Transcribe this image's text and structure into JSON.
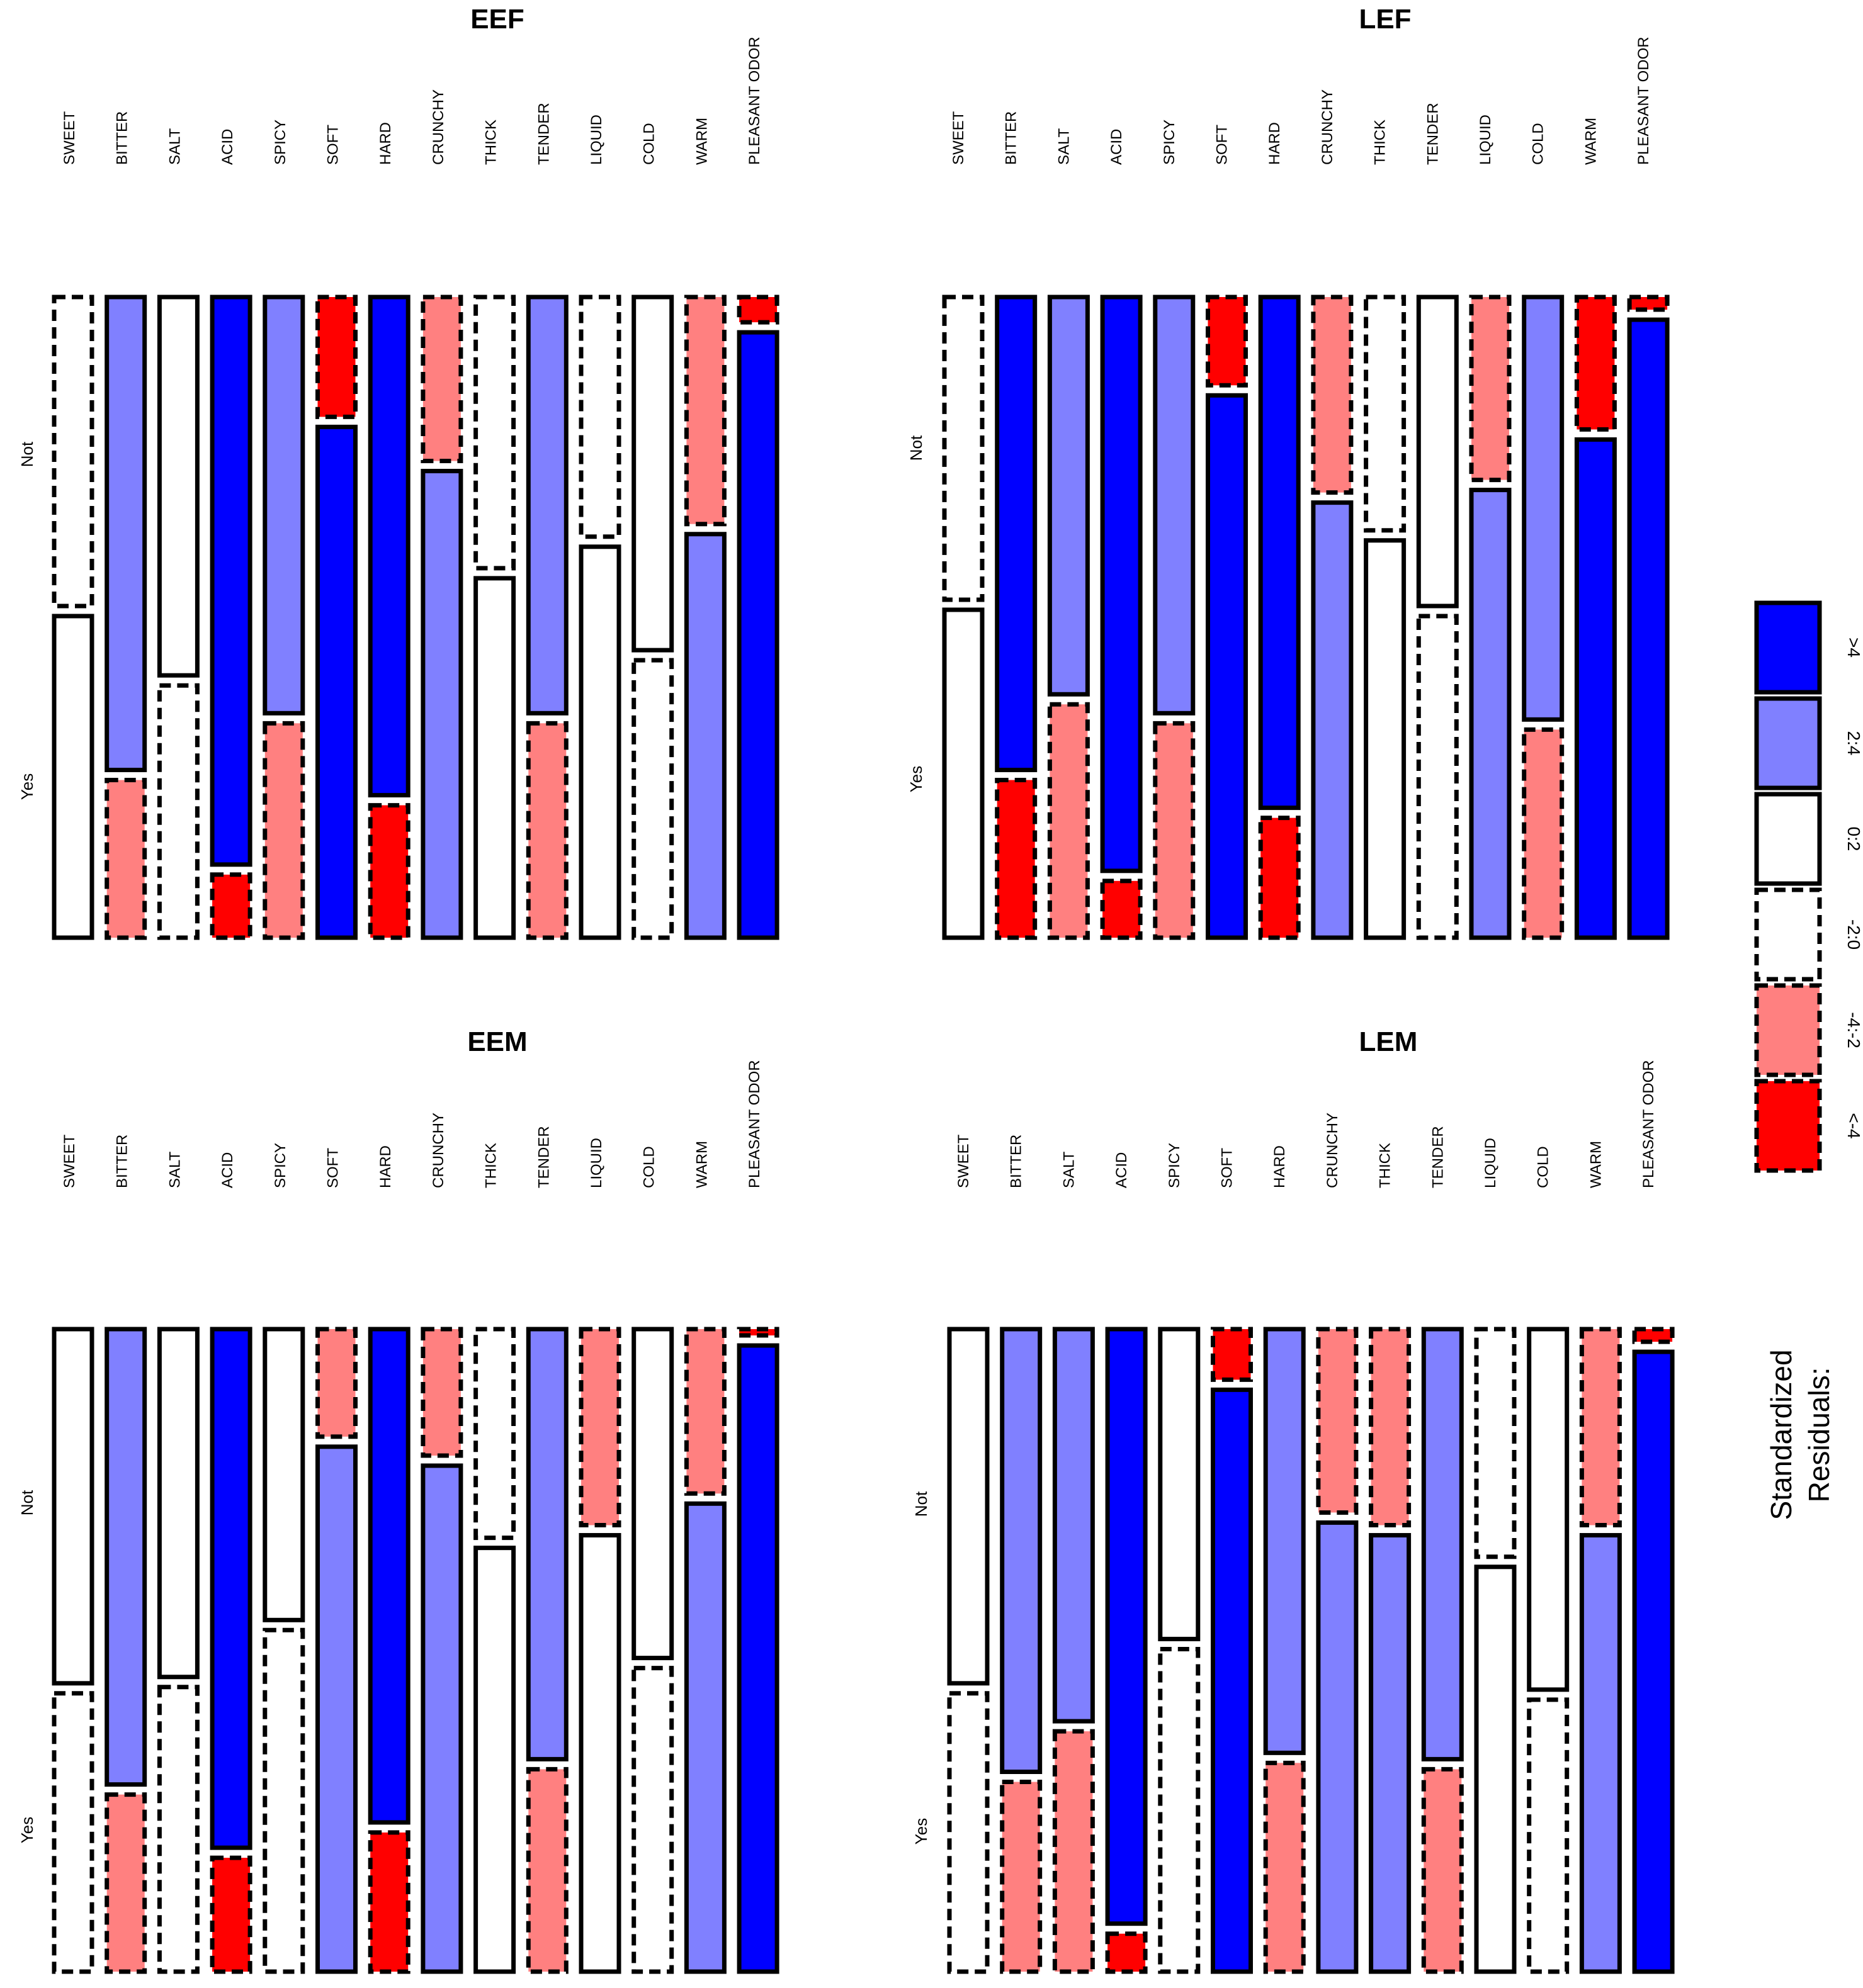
{
  "chart_data": {
    "type": "mosaic",
    "categories": [
      "SWEET",
      "BITTER",
      "SALT",
      "ACID",
      "SPICY",
      "SOFT",
      "HARD",
      "CRUNCHY",
      "THICK",
      "TENDER",
      "LIQUID",
      "COLD",
      "WARM",
      "PLEASANT ODOR"
    ],
    "levels": [
      "Not",
      "Yes"
    ],
    "legend": {
      "title_line1": "Standardized",
      "title_line2": "Residuals:",
      "entries": [
        {
          "key": "gt4",
          "label": ">4",
          "fill": "#0000ff",
          "dashed": false
        },
        {
          "key": "2to4",
          "label": "2:4",
          "fill": "#8080ff",
          "dashed": false
        },
        {
          "key": "0to2",
          "label": "0:2",
          "fill": "#ffffff",
          "dashed": false
        },
        {
          "key": "m2to0",
          "label": "-2:0",
          "fill": "#ffffff",
          "dashed": true
        },
        {
          "key": "m4tom2",
          "label": "-4:-2",
          "fill": "#ff8080",
          "dashed": true
        },
        {
          "key": "ltm4",
          "label": "<-4",
          "fill": "#ff0000",
          "dashed": true
        }
      ]
    },
    "panels": [
      {
        "title": "EEF",
        "not_fraction": [
          0.49,
          0.75,
          0.6,
          0.9,
          0.66,
          0.19,
          0.79,
          0.26,
          0.43,
          0.66,
          0.38,
          0.56,
          0.36,
          0.04
        ],
        "not_class": [
          "m2to0",
          "2to4",
          "0to2",
          "gt4",
          "2to4",
          "ltm4",
          "gt4",
          "m4tom2",
          "m2to0",
          "2to4",
          "m2to0",
          "0to2",
          "m4tom2",
          "ltm4"
        ],
        "yes_class": [
          "0to2",
          "m4tom2",
          "m2to0",
          "ltm4",
          "m4tom2",
          "gt4",
          "ltm4",
          "2to4",
          "0to2",
          "m4tom2",
          "0to2",
          "m2to0",
          "2to4",
          "gt4"
        ]
      },
      {
        "title": "LEF",
        "not_fraction": [
          0.48,
          0.75,
          0.63,
          0.91,
          0.66,
          0.14,
          0.81,
          0.31,
          0.37,
          0.49,
          0.29,
          0.67,
          0.21,
          0.02
        ],
        "not_class": [
          "m2to0",
          "gt4",
          "2to4",
          "gt4",
          "2to4",
          "ltm4",
          "gt4",
          "m4tom2",
          "m2to0",
          "0to2",
          "m4tom2",
          "2to4",
          "ltm4",
          "ltm4"
        ],
        "yes_class": [
          "0to2",
          "ltm4",
          "m4tom2",
          "ltm4",
          "m4tom2",
          "gt4",
          "ltm4",
          "2to4",
          "0to2",
          "m2to0",
          "2to4",
          "m4tom2",
          "gt4",
          "gt4"
        ]
      },
      {
        "title": "EEM",
        "not_fraction": [
          0.56,
          0.72,
          0.55,
          0.82,
          0.46,
          0.17,
          0.78,
          0.2,
          0.33,
          0.68,
          0.31,
          0.52,
          0.26,
          0.01
        ],
        "not_class": [
          "0to2",
          "2to4",
          "0to2",
          "gt4",
          "0to2",
          "m4tom2",
          "gt4",
          "m4tom2",
          "m2to0",
          "2to4",
          "m4tom2",
          "0to2",
          "m4tom2",
          "ltm4"
        ],
        "yes_class": [
          "m2to0",
          "m4tom2",
          "m2to0",
          "ltm4",
          "m2to0",
          "2to4",
          "ltm4",
          "2to4",
          "0to2",
          "m4tom2",
          "0to2",
          "m2to0",
          "2to4",
          "gt4"
        ]
      },
      {
        "title": "LEM",
        "not_fraction": [
          0.56,
          0.7,
          0.62,
          0.94,
          0.49,
          0.08,
          0.67,
          0.29,
          0.31,
          0.68,
          0.36,
          0.57,
          0.31,
          0.02
        ],
        "not_class": [
          "0to2",
          "2to4",
          "2to4",
          "gt4",
          "0to2",
          "ltm4",
          "2to4",
          "m4tom2",
          "m4tom2",
          "2to4",
          "m2to0",
          "0to2",
          "m4tom2",
          "ltm4"
        ],
        "yes_class": [
          "m2to0",
          "m4tom2",
          "m4tom2",
          "ltm4",
          "m2to0",
          "gt4",
          "m4tom2",
          "2to4",
          "2to4",
          "m4tom2",
          "0to2",
          "m2to0",
          "2to4",
          "gt4"
        ]
      }
    ]
  }
}
